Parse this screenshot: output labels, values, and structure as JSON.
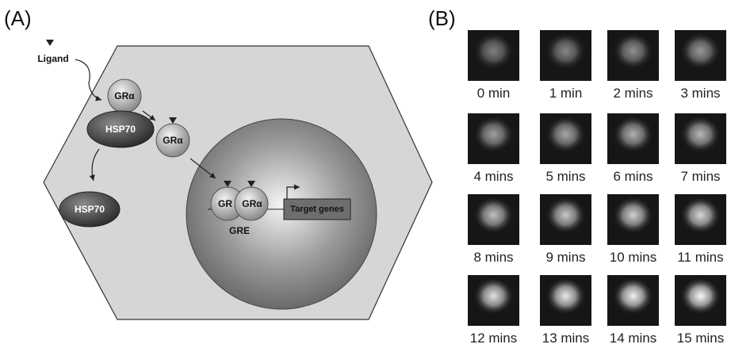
{
  "panel_a": {
    "label": "(A)",
    "ligand": "Ligand",
    "gr_bound": "GRα",
    "hsp70_bound": "HSP70",
    "gr_free": "GRα",
    "hsp70_free": "HSP70",
    "dimer_left": "GR",
    "dimer_right": "GRα",
    "target_genes": "Target genes",
    "gre": "GRE"
  },
  "panel_b": {
    "label": "(B)",
    "frames": [
      "0 min",
      "1 min",
      "2 mins",
      "3 mins",
      "4 mins",
      "5 mins",
      "6 mins",
      "7 mins",
      "8 mins",
      "9 mins",
      "10 mins",
      "11 mins",
      "12 mins",
      "13 mins",
      "14 mins",
      "15 mins"
    ]
  }
}
